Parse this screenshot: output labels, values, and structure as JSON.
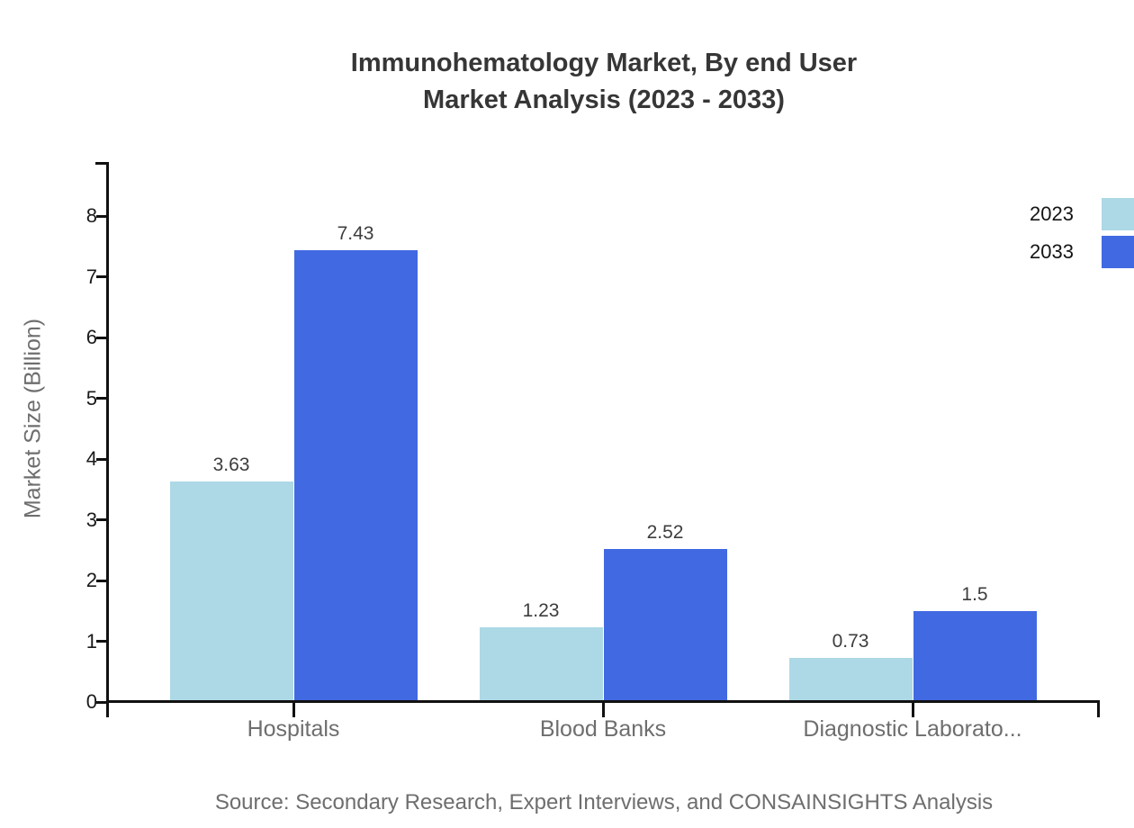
{
  "title": {
    "line1": "Immunohematology Market, By end User",
    "line2": "Market Analysis (2023 - 2033)"
  },
  "chart_data": {
    "type": "bar",
    "categories": [
      "Hospitals",
      "Blood Banks",
      "Diagnostic Laborato..."
    ],
    "series": [
      {
        "name": "2023",
        "color": "#ADD8E6",
        "values": [
          3.63,
          1.23,
          0.73
        ]
      },
      {
        "name": "2033",
        "color": "#4169E1",
        "values": [
          7.43,
          2.52,
          1.5
        ]
      }
    ],
    "ylabel": "Market Size (Billion)",
    "ylim": [
      0,
      8
    ],
    "yticks": [
      0,
      1,
      2,
      3,
      4,
      5,
      6,
      7,
      8
    ],
    "legend_position": "top-right",
    "grid": false,
    "value_labels_shown": true
  },
  "source": "Source: Secondary Research, Expert Interviews, and CONSAINSIGHTS Analysis"
}
